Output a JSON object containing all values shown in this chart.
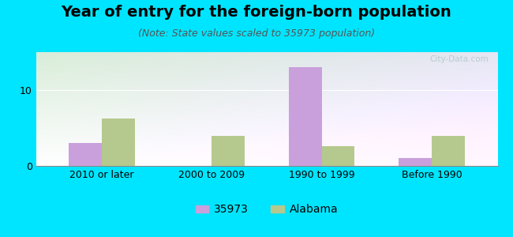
{
  "title": "Year of entry for the foreign-born population",
  "subtitle": "(Note: State values scaled to 35973 population)",
  "categories": [
    "2010 or later",
    "2000 to 2009",
    "1990 to 1999",
    "Before 1990"
  ],
  "values_35973": [
    3.0,
    0.0,
    13.0,
    1.0
  ],
  "values_alabama": [
    6.2,
    4.0,
    2.6,
    4.0
  ],
  "color_35973": "#c9a0dc",
  "color_alabama": "#b5c98e",
  "ylim": [
    0,
    15
  ],
  "yticks": [
    0,
    10
  ],
  "bg_color": "#00e5ff",
  "watermark": "City-Data.com",
  "legend_label_1": "35973",
  "legend_label_2": "Alabama",
  "bar_width": 0.3,
  "title_fontsize": 14,
  "subtitle_fontsize": 9,
  "tick_fontsize": 9,
  "legend_fontsize": 10
}
